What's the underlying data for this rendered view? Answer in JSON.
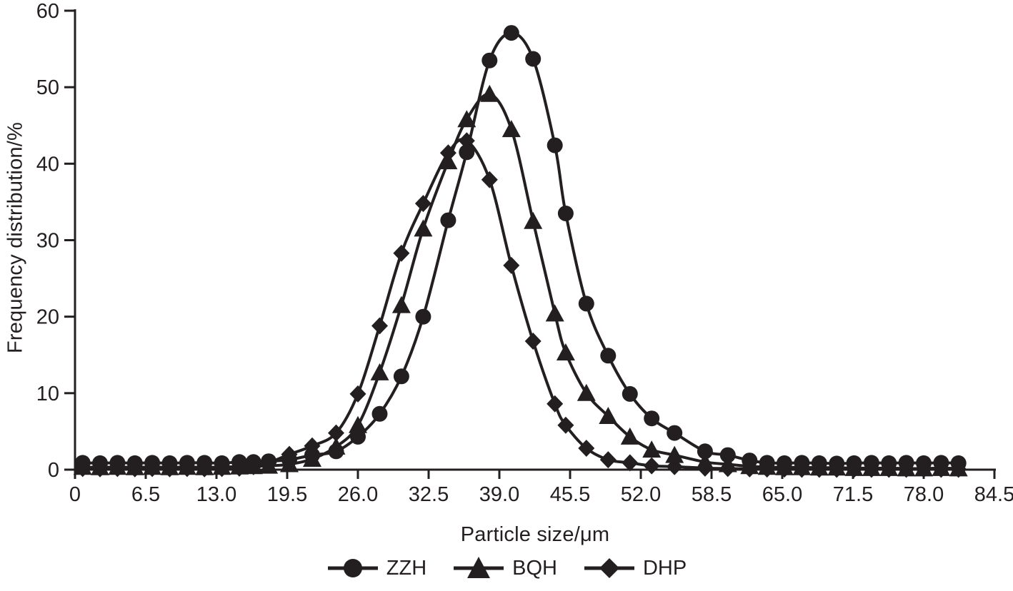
{
  "figure": {
    "background": "#ffffff",
    "ink_color": "#231f20"
  },
  "chart_data": {
    "type": "line",
    "title": "",
    "xlabel": "Particle size/μm",
    "ylabel": "Frequency distribution/%",
    "xlim": [
      0,
      84.5
    ],
    "ylim": [
      0,
      60
    ],
    "grid": false,
    "legend_position": "bottom-center",
    "x_tick_labels": [
      "0",
      "6.5",
      "13.0",
      "19.5",
      "26.0",
      "32.5",
      "39.0",
      "45.5",
      "52.0",
      "58.5",
      "65.0",
      "71.5",
      "78.0",
      "84.5"
    ],
    "x_tick_values": [
      0,
      6.5,
      13.0,
      19.5,
      26.0,
      32.5,
      39.0,
      45.5,
      52.0,
      58.5,
      65.0,
      71.5,
      78.0,
      84.5
    ],
    "y_tick_labels": [
      "0",
      "10",
      "20",
      "30",
      "40",
      "50",
      "60"
    ],
    "y_tick_values": [
      0,
      10,
      20,
      30,
      40,
      50,
      60
    ],
    "x": [
      0.7,
      2.3,
      3.9,
      5.5,
      7.1,
      8.7,
      10.3,
      11.9,
      13.5,
      15.1,
      16.4,
      17.8,
      19.7,
      21.8,
      24.0,
      26.0,
      28.0,
      30.0,
      32.0,
      34.3,
      36.0,
      38.1,
      40.1,
      42.1,
      44.1,
      45.1,
      47.0,
      49.0,
      51.0,
      53.0,
      55.1,
      57.9,
      60.0,
      62.0,
      63.6,
      65.2,
      66.8,
      68.4,
      70.0,
      71.6,
      73.2,
      74.8,
      76.4,
      78.0,
      79.6,
      81.2
    ],
    "series": [
      {
        "name": "DHP",
        "marker": "diamond",
        "color": "#231f20",
        "values": [
          0.15,
          0.12,
          0.15,
          0.12,
          0.15,
          0.12,
          0.15,
          0.12,
          0.15,
          0.2,
          0.4,
          0.9,
          2.0,
          3.1,
          4.8,
          9.9,
          18.8,
          28.3,
          34.8,
          41.4,
          43.0,
          37.9,
          26.7,
          16.8,
          8.6,
          5.8,
          2.8,
          1.3,
          0.9,
          0.5,
          0.4,
          0.2,
          0.15,
          0.1,
          0.08,
          0.08,
          0.05,
          0.05,
          0.05,
          0.05,
          0.05,
          0.05,
          0.05,
          0.05,
          0.05,
          0.05
        ]
      },
      {
        "name": "BQH",
        "marker": "triangle",
        "color": "#231f20",
        "values": [
          0.35,
          0.3,
          0.35,
          0.3,
          0.35,
          0.3,
          0.35,
          0.3,
          0.35,
          0.4,
          0.45,
          0.5,
          0.7,
          1.4,
          3.0,
          5.8,
          12.7,
          21.5,
          31.5,
          40.3,
          45.8,
          49.1,
          44.5,
          32.5,
          20.4,
          15.3,
          10.0,
          7.0,
          4.3,
          2.6,
          1.9,
          1.0,
          0.7,
          0.45,
          0.35,
          0.3,
          0.3,
          0.25,
          0.25,
          0.2,
          0.2,
          0.2,
          0.15,
          0.15,
          0.2,
          0.15
        ]
      },
      {
        "name": "ZZH",
        "marker": "circle",
        "color": "#231f20",
        "values": [
          0.9,
          0.85,
          0.9,
          0.85,
          0.9,
          0.85,
          0.9,
          0.9,
          0.85,
          1.0,
          1.0,
          1.1,
          1.3,
          1.9,
          2.4,
          4.3,
          7.3,
          12.2,
          20.0,
          32.6,
          41.5,
          53.5,
          57.1,
          53.7,
          42.4,
          33.5,
          21.7,
          14.9,
          9.9,
          6.7,
          4.8,
          2.4,
          1.9,
          1.2,
          0.9,
          0.85,
          0.9,
          0.85,
          0.8,
          0.85,
          0.9,
          0.85,
          0.9,
          0.85,
          0.9,
          0.85
        ]
      }
    ],
    "legend_order": [
      "ZZH",
      "BQH",
      "DHP"
    ]
  }
}
